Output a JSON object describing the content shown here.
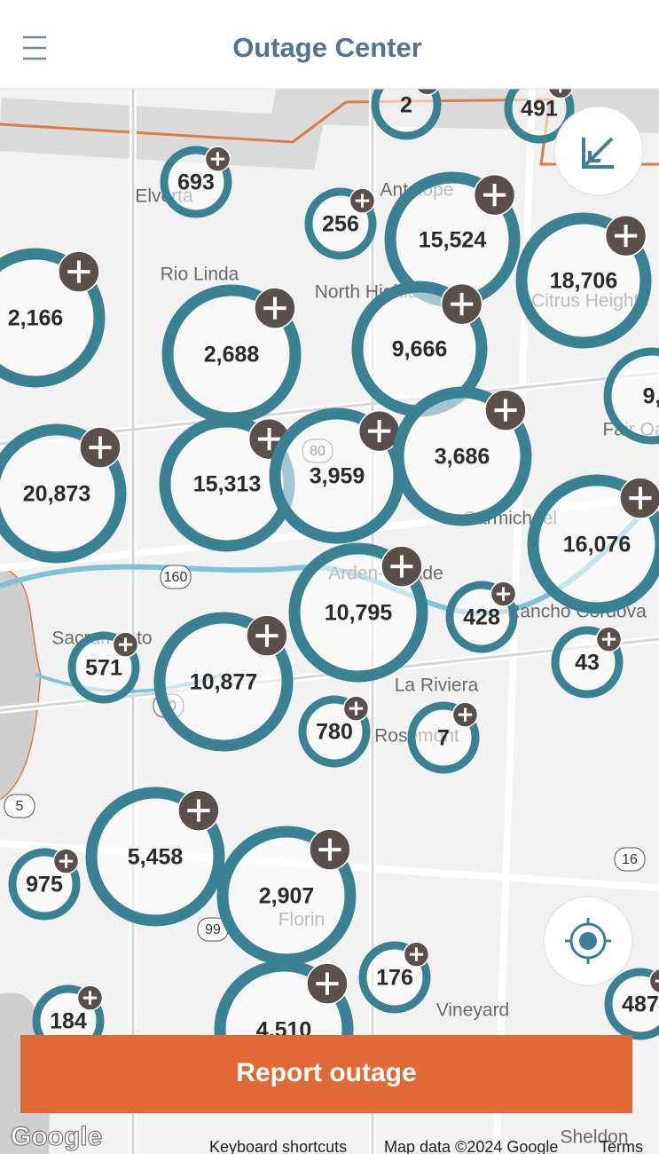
{
  "header": {
    "title": "Outage Center"
  },
  "clusters": [
    "2",
    "491",
    "693",
    "256",
    "15,524",
    "18,706",
    "2,166",
    "2,688",
    "9,666",
    "9,",
    "20,873",
    "15,313",
    "3,959",
    "3,686",
    "16,076",
    "10,795",
    "428",
    "571",
    "10,877",
    "43",
    "780",
    "7",
    "5,458",
    "975",
    "2,907",
    "176",
    "487",
    "184",
    "4,510"
  ],
  "places": [
    "Elverta",
    "Antelope",
    "Rio Linda",
    "North Highlands",
    "Citrus Heights",
    "Fair Oaks",
    "Carmichael",
    "Arden-Arcade",
    "Sacramento",
    "Rancho Cordova",
    "La Riviera",
    "Rosemont",
    "Florin",
    "Vineyard",
    "Sheldon"
  ],
  "road_shields": [
    "80",
    "160",
    "16",
    "99",
    "5",
    "50"
  ],
  "report_button": "Report outage",
  "footer": {
    "logo": "Google",
    "shortcuts": "Keyboard shortcuts",
    "map_data": "Map data ©2024 Google",
    "terms": "Terms"
  }
}
